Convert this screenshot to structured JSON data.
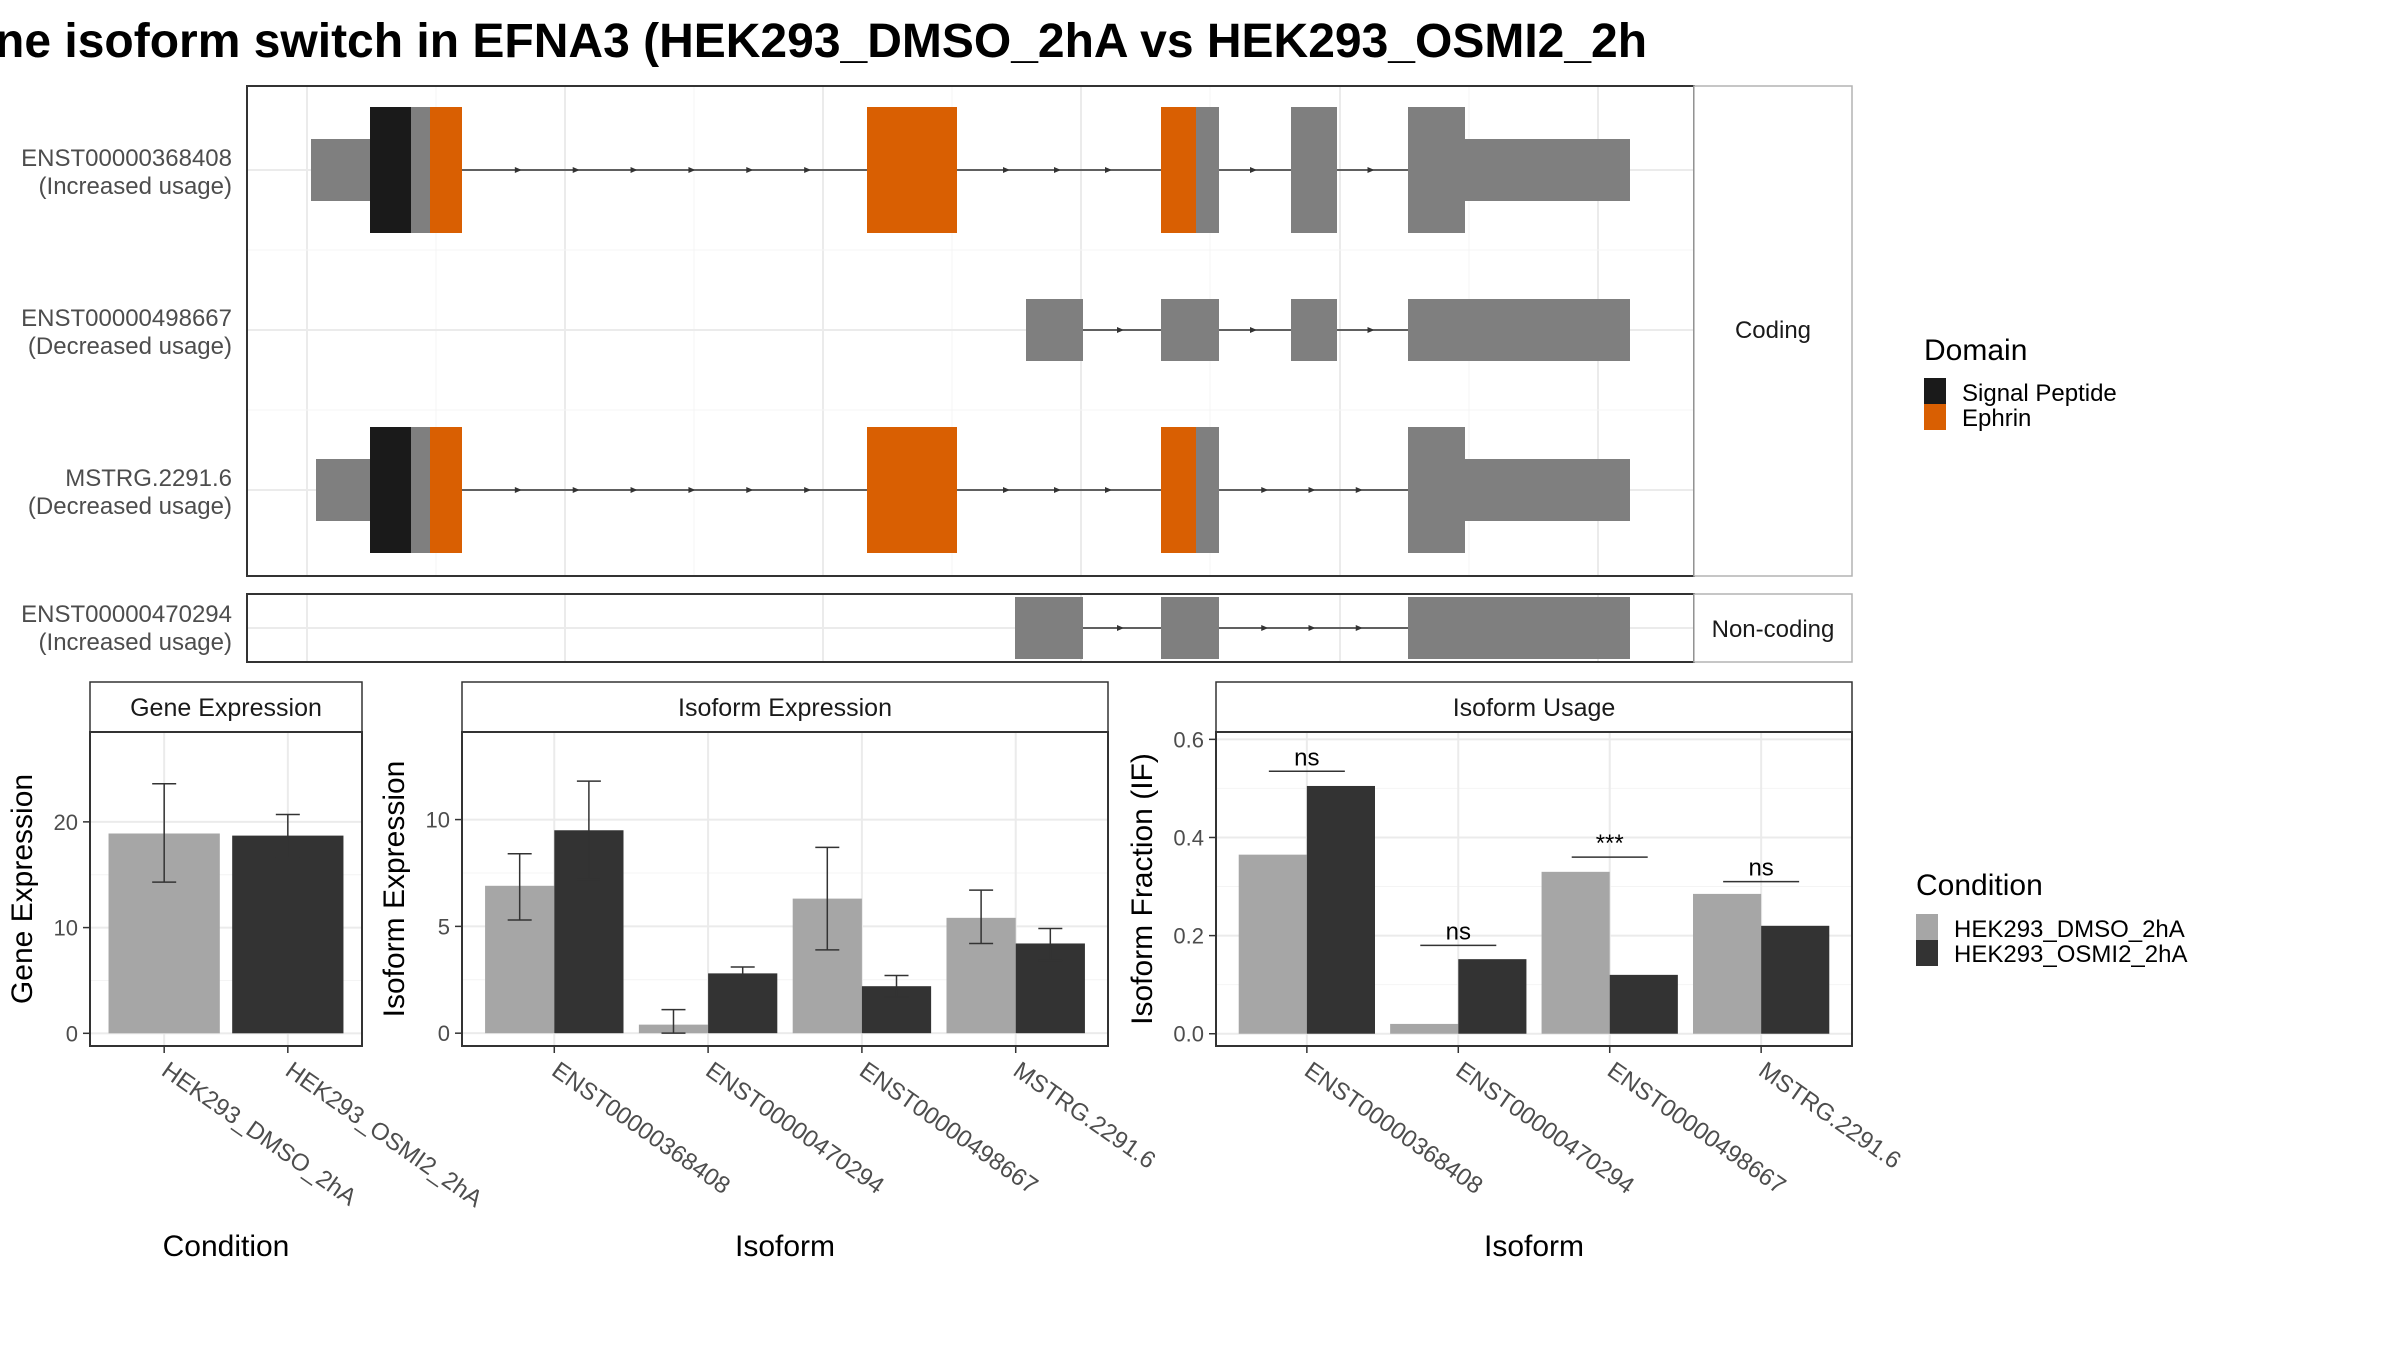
{
  "title": "ne isoform switch in EFNA3 (HEK293_DMSO_2hA vs HEK293_OSMI2_2h",
  "colors": {
    "signal_peptide": "#1a1a1a",
    "ephrin": "#d95f02",
    "exon": "#7f7f7f",
    "dmso": "#a6a6a6",
    "osmi2": "#333333",
    "grid": "#ebebeb",
    "panel_border": "#333333"
  },
  "structure": {
    "coding_strip": "Coding",
    "noncoding_strip": "Non-coding",
    "transcripts": [
      {
        "id": "ENST00000368408",
        "usage": "(Increased usage)",
        "group": "coding"
      },
      {
        "id": "ENST00000498667",
        "usage": "(Decreased usage)",
        "group": "coding"
      },
      {
        "id": "MSTRG.2291.6",
        "usage": "(Decreased usage)",
        "group": "coding"
      },
      {
        "id": "ENST00000470294",
        "usage": "(Increased usage)",
        "group": "noncoding"
      }
    ]
  },
  "legend_domain": {
    "title": "Domain",
    "items": [
      {
        "label": "Signal Peptide",
        "color": "#1a1a1a"
      },
      {
        "label": "Ephrin",
        "color": "#d95f02"
      }
    ]
  },
  "legend_condition": {
    "title": "Condition",
    "items": [
      {
        "label": "HEK293_DMSO_2hA",
        "color": "#a6a6a6"
      },
      {
        "label": "HEK293_OSMI2_2hA",
        "color": "#333333"
      }
    ]
  },
  "chart_data": [
    {
      "type": "bar",
      "strip": "Gene Expression",
      "xlabel": "Condition",
      "ylabel": "Gene Expression",
      "categories": [
        "HEK293_DMSO_2hA",
        "HEK293_OSMI2_2hA"
      ],
      "values": [
        18.9,
        18.7
      ],
      "errors": [
        [
          14.3,
          23.6
        ],
        [
          16.6,
          20.7
        ]
      ],
      "ylim": [
        -1.2,
        28.5
      ],
      "yticks": [
        0,
        10,
        20
      ]
    },
    {
      "type": "bar",
      "strip": "Isoform Expression",
      "xlabel": "Isoform",
      "ylabel": "Isoform Expression",
      "categories": [
        "ENST00000368408",
        "ENST00000470294",
        "ENST00000498667",
        "MSTRG.2291.6"
      ],
      "series": [
        {
          "name": "HEK293_DMSO_2hA",
          "values": [
            6.9,
            0.4,
            6.3,
            5.4
          ],
          "errors": [
            [
              5.3,
              8.4
            ],
            [
              0.0,
              1.1
            ],
            [
              3.9,
              8.7
            ],
            [
              4.2,
              6.7
            ]
          ]
        },
        {
          "name": "HEK293_OSMI2_2hA",
          "values": [
            9.5,
            2.8,
            2.2,
            4.2
          ],
          "errors": [
            [
              7.2,
              11.8
            ],
            [
              2.5,
              3.1
            ],
            [
              1.7,
              2.7
            ],
            [
              3.4,
              4.9
            ]
          ]
        }
      ],
      "ylim": [
        -0.6,
        14.1
      ],
      "yticks": [
        0,
        5,
        10
      ]
    },
    {
      "type": "bar",
      "strip": "Isoform Usage",
      "xlabel": "Isoform",
      "ylabel": "Isoform Fraction (IF)",
      "categories": [
        "ENST00000368408",
        "ENST00000470294",
        "ENST00000498667",
        "MSTRG.2291.6"
      ],
      "series": [
        {
          "name": "HEK293_DMSO_2hA",
          "values": [
            0.365,
            0.02,
            0.33,
            0.285
          ]
        },
        {
          "name": "HEK293_OSMI2_2hA",
          "values": [
            0.505,
            0.152,
            0.12,
            0.22
          ]
        }
      ],
      "significance": [
        {
          "label": "ns",
          "y": 0.535
        },
        {
          "label": "ns",
          "y": 0.18
        },
        {
          "label": "***",
          "y": 0.36
        },
        {
          "label": "ns",
          "y": 0.31
        }
      ],
      "ylim": [
        -0.025,
        0.615
      ],
      "yticks": [
        0.0,
        0.2,
        0.4,
        0.6
      ],
      "ytick_labels": [
        "0.0",
        "0.2",
        "0.4",
        "0.6"
      ]
    }
  ]
}
